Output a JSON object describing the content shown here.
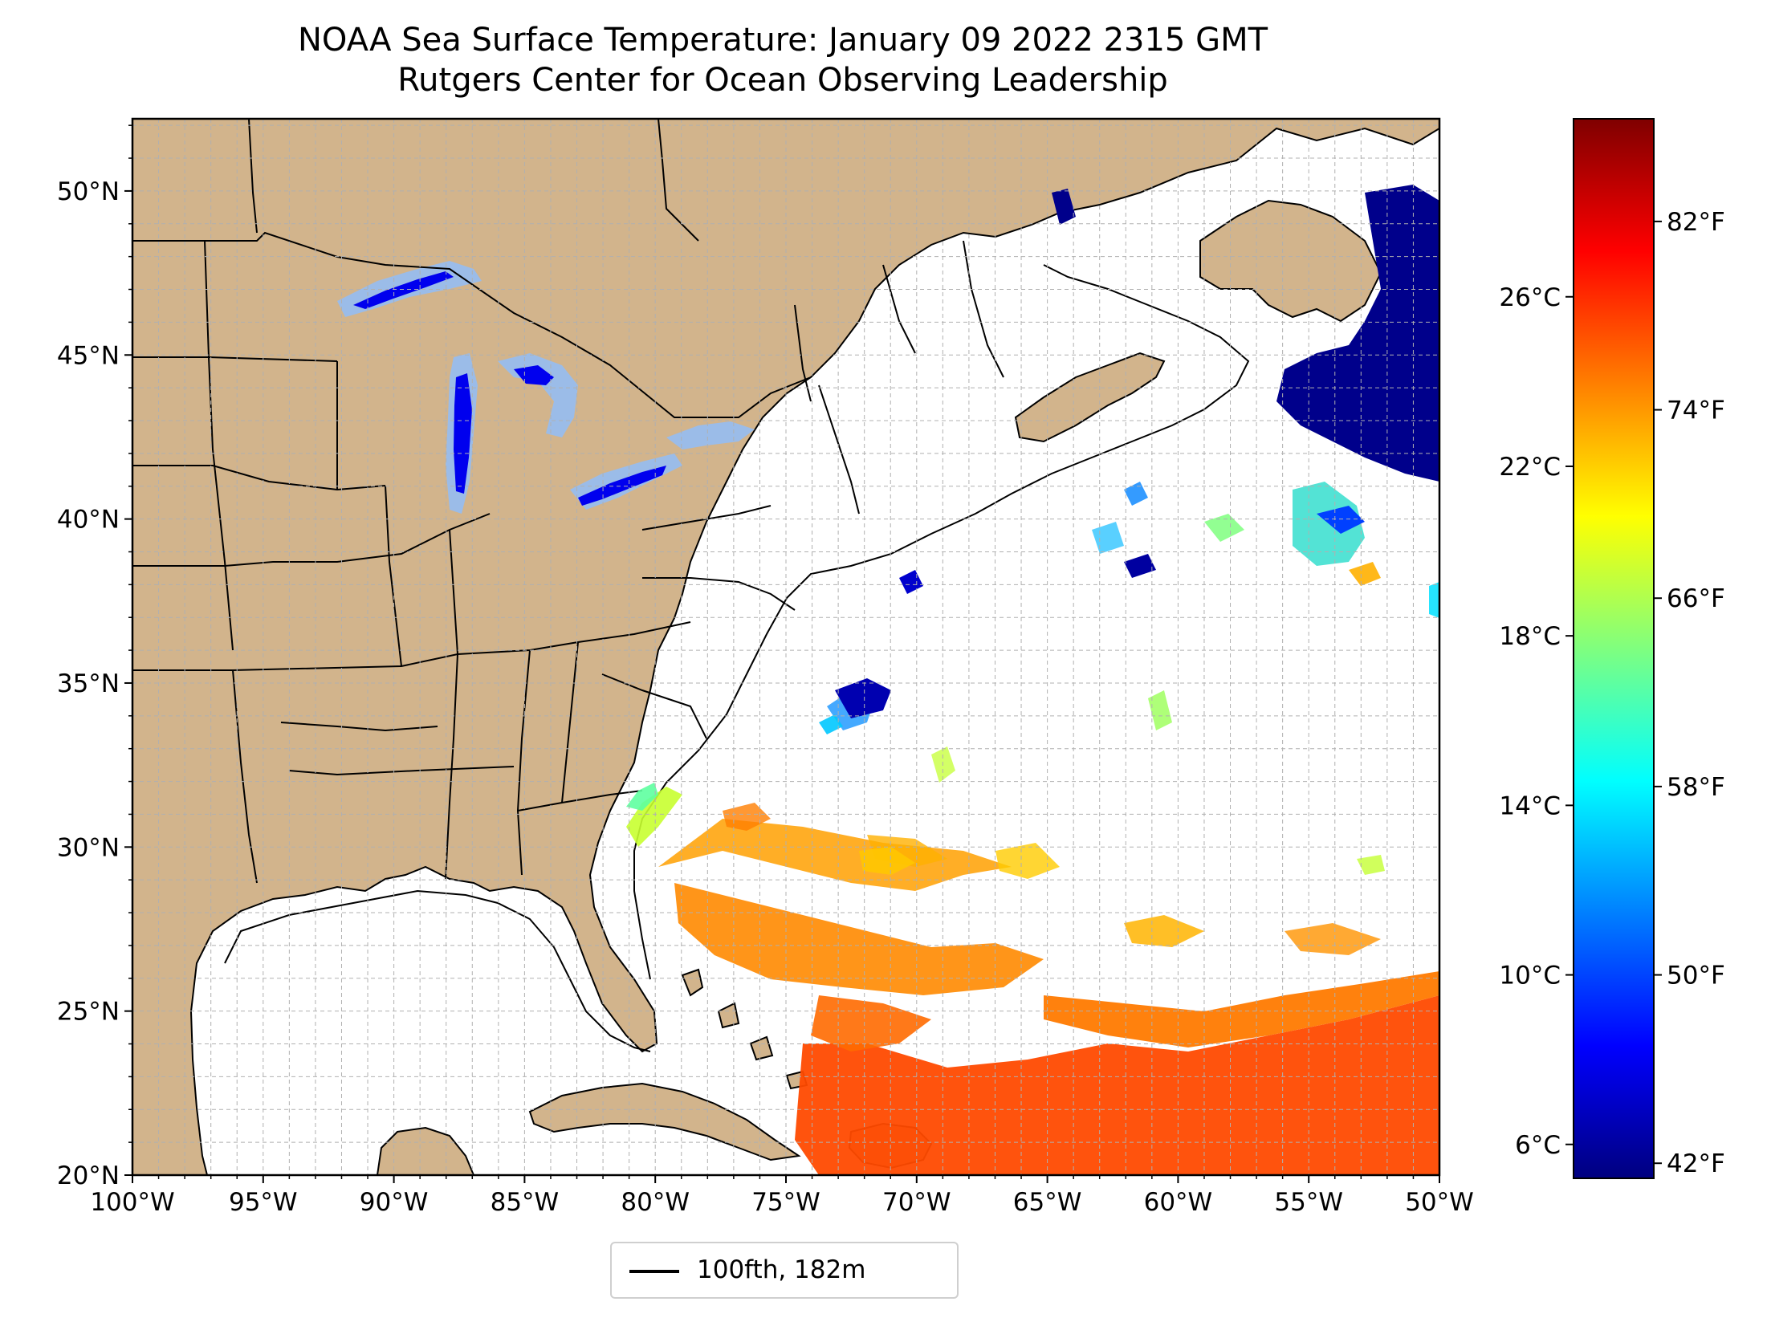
{
  "title": {
    "line1": "NOAA Sea Surface Temperature: January 09 2022 2315 GMT",
    "line2": "Rutgers Center for Ocean Observing Leadership"
  },
  "map": {
    "lon_range": [
      -100,
      -50
    ],
    "lat_range": [
      20,
      52.2
    ],
    "longitude_ticks": [
      "100°W",
      "95°W",
      "90°W",
      "85°W",
      "80°W",
      "75°W",
      "70°W",
      "65°W",
      "60°W",
      "55°W",
      "50°W"
    ],
    "latitude_ticks": [
      "20°N",
      "25°N",
      "30°N",
      "35°N",
      "40°N",
      "45°N",
      "50°N"
    ],
    "gridlines": "on",
    "land_color": "#d2b48c",
    "lake_color": "#9bbce8",
    "ocean_background": "#ffffff"
  },
  "colorbar": {
    "colormap": "jet",
    "celsius_ticks": [
      "6°C",
      "10°C",
      "14°C",
      "18°C",
      "22°C",
      "26°C"
    ],
    "fahrenheit_ticks": [
      "42°F",
      "50°F",
      "58°F",
      "66°F",
      "74°F",
      "82°F"
    ],
    "colors": [
      "#00007f",
      "#0000ff",
      "#007fff",
      "#00ffff",
      "#7fff7f",
      "#ffff00",
      "#ff7f00",
      "#ff0000",
      "#7f0000"
    ]
  },
  "legend": {
    "label": "100fth, 182m"
  }
}
